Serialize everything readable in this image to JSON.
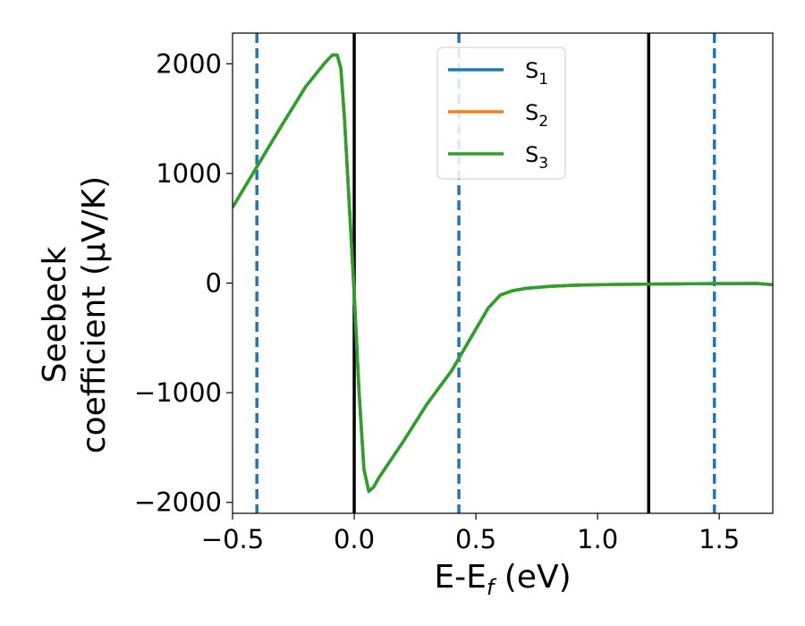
{
  "chart_data": {
    "type": "line",
    "xlabel": {
      "main": "E-E",
      "sub": "f",
      "unit": " (eV)"
    },
    "ylabel": {
      "line1": "Seebeck",
      "line2": "coefficient  (μV/K)"
    },
    "xlim": [
      -0.5,
      1.72
    ],
    "ylim": [
      -2100,
      2280
    ],
    "xticks": [
      -0.5,
      0.0,
      0.5,
      1.0,
      1.5
    ],
    "xtick_labels": [
      "−0.5",
      "0.0",
      "0.5",
      "1.0",
      "1.5"
    ],
    "yticks": [
      -2000,
      -1000,
      0,
      1000,
      2000
    ],
    "ytick_labels": [
      "−2000",
      "−1000",
      "0",
      "1000",
      "2000"
    ],
    "grid": false,
    "legend_placement": "top-center",
    "vlines_solid": [
      0.0,
      1.21
    ],
    "vlines_dashed": [
      -0.4,
      0.43,
      1.48
    ],
    "series": [
      {
        "name": "S",
        "sub": "1",
        "color": "#1f77b4",
        "x": [
          -0.5,
          -0.4,
          -0.3,
          -0.2,
          -0.12,
          -0.09,
          -0.07,
          -0.055,
          -0.04,
          -0.02,
          0.0,
          0.02,
          0.04,
          0.06,
          0.08,
          0.1,
          0.2,
          0.3,
          0.4,
          0.5,
          0.55,
          0.6,
          0.65,
          0.7,
          0.8,
          0.9,
          1.0,
          1.1,
          1.2,
          1.3,
          1.4,
          1.5,
          1.6,
          1.65,
          1.72
        ],
        "y": [
          690,
          1060,
          1430,
          1790,
          2010,
          2080,
          2080,
          1960,
          1500,
          700,
          -100,
          -1000,
          -1700,
          -1900,
          -1860,
          -1780,
          -1450,
          -1100,
          -800,
          -420,
          -230,
          -110,
          -70,
          -50,
          -30,
          -20,
          -15,
          -12,
          -10,
          -8,
          -6,
          -5,
          -5,
          -3,
          -15
        ]
      },
      {
        "name": "S",
        "sub": "2",
        "color": "#ff7f0e",
        "x": [
          -0.5,
          -0.4,
          -0.3,
          -0.2,
          -0.12,
          -0.09,
          -0.07,
          -0.055,
          -0.04,
          -0.02,
          0.0,
          0.02,
          0.04,
          0.06,
          0.08,
          0.1,
          0.2,
          0.3,
          0.4,
          0.5,
          0.55,
          0.6,
          0.65,
          0.7,
          0.8,
          0.9,
          1.0,
          1.1,
          1.2,
          1.3,
          1.4,
          1.5,
          1.6,
          1.65,
          1.72
        ],
        "y": [
          690,
          1060,
          1430,
          1790,
          2010,
          2080,
          2080,
          1960,
          1500,
          700,
          -100,
          -1000,
          -1700,
          -1900,
          -1860,
          -1780,
          -1450,
          -1100,
          -800,
          -420,
          -230,
          -110,
          -70,
          -50,
          -30,
          -20,
          -15,
          -12,
          -10,
          -8,
          -6,
          -5,
          -5,
          -3,
          -15
        ]
      },
      {
        "name": "S",
        "sub": "3",
        "color": "#2ca02c",
        "x": [
          -0.5,
          -0.4,
          -0.3,
          -0.2,
          -0.12,
          -0.09,
          -0.07,
          -0.055,
          -0.04,
          -0.02,
          0.0,
          0.02,
          0.04,
          0.06,
          0.08,
          0.1,
          0.2,
          0.3,
          0.4,
          0.5,
          0.55,
          0.6,
          0.65,
          0.7,
          0.8,
          0.9,
          1.0,
          1.1,
          1.2,
          1.3,
          1.4,
          1.5,
          1.6,
          1.65,
          1.72
        ],
        "y": [
          690,
          1060,
          1430,
          1790,
          2010,
          2080,
          2080,
          1960,
          1500,
          700,
          -100,
          -1000,
          -1700,
          -1900,
          -1860,
          -1780,
          -1450,
          -1100,
          -800,
          -420,
          -230,
          -110,
          -70,
          -50,
          -30,
          -20,
          -15,
          -12,
          -10,
          -8,
          -6,
          -5,
          -5,
          -3,
          -15
        ]
      }
    ]
  }
}
